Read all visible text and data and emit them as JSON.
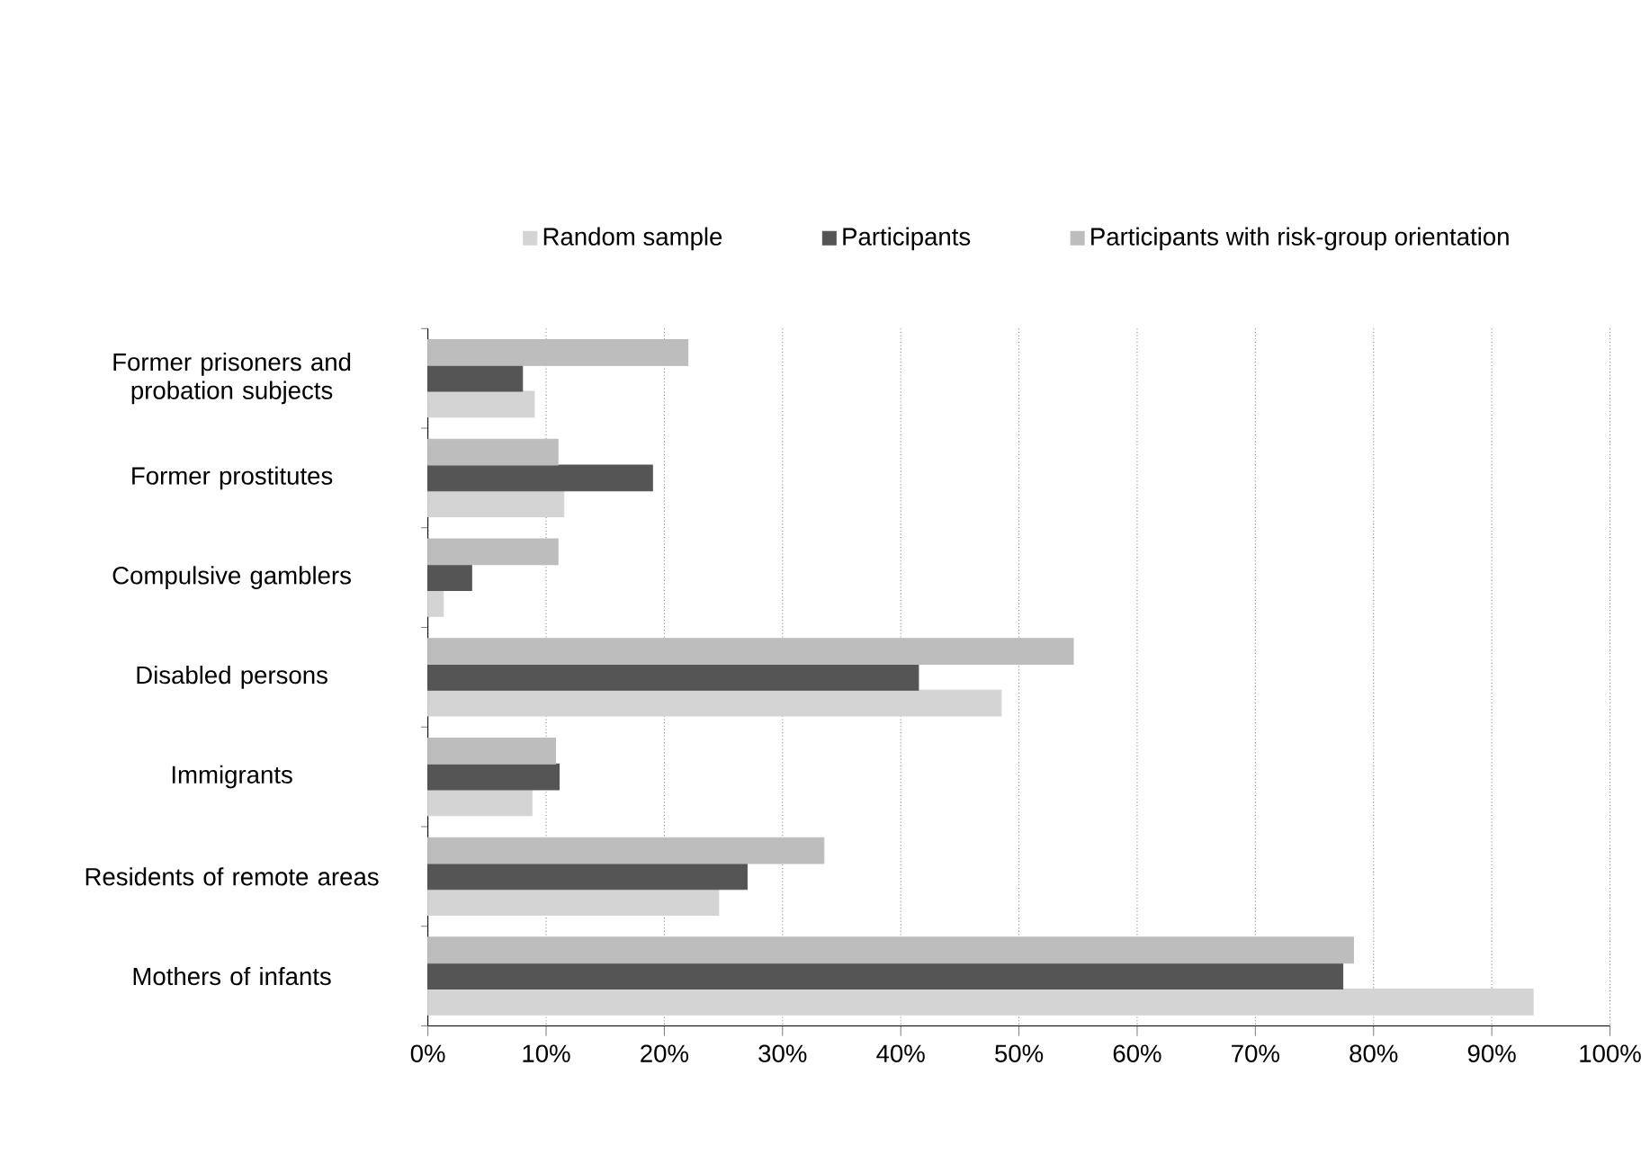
{
  "chart_data": {
    "type": "bar",
    "orientation": "horizontal",
    "categories": [
      "Former prisoners and probation subjects",
      "Former prostitutes",
      "Compulsive gamblers",
      "Disabled persons",
      "Immigrants",
      "Residents of remote areas",
      "Mothers of infants"
    ],
    "series": [
      {
        "name": "Random sample",
        "color": "#d4d4d4",
        "values": [
          9,
          11.5,
          1.3,
          48.5,
          8.8,
          24.6,
          93.5
        ]
      },
      {
        "name": "Participants",
        "color": "#555555",
        "values": [
          8,
          19,
          3.7,
          41.5,
          11.1,
          27,
          77.4
        ]
      },
      {
        "name": "Participants with risk-group orientation",
        "color": "#bdbdbd",
        "values": [
          22,
          11,
          11,
          54.6,
          10.8,
          33.5,
          78.3
        ]
      }
    ],
    "xlim": [
      0,
      100
    ],
    "xticks": [
      {
        "value": 0,
        "label": "0%"
      },
      {
        "value": 10,
        "label": "10%"
      },
      {
        "value": 20,
        "label": "20%"
      },
      {
        "value": 30,
        "label": "30%"
      },
      {
        "value": 40,
        "label": "40%"
      },
      {
        "value": 50,
        "label": "50%"
      },
      {
        "value": 60,
        "label": "60%"
      },
      {
        "value": 70,
        "label": "70%"
      },
      {
        "value": 80,
        "label": "80%"
      },
      {
        "value": 90,
        "label": "90%"
      },
      {
        "value": 100,
        "label": "100%"
      }
    ],
    "grid": "x",
    "legend": "top"
  }
}
